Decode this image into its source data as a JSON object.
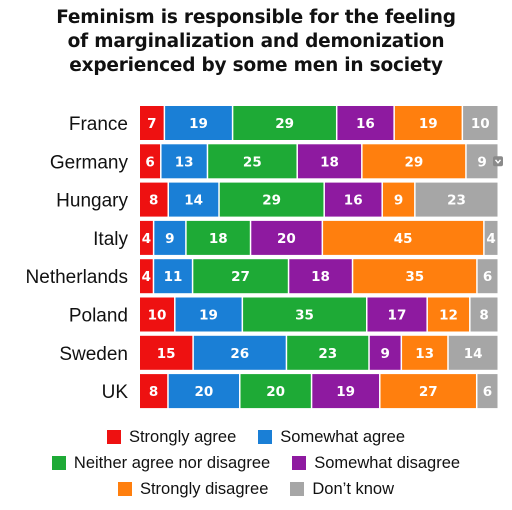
{
  "title_lines": [
    "Feminism is responsible for the feeling",
    "of marginalization and demonization",
    "experienced by some men in society"
  ],
  "chart_data": {
    "type": "bar",
    "orientation": "horizontal",
    "stacked": true,
    "percent_stacked": true,
    "categories": [
      "France",
      "Germany",
      "Hungary",
      "Italy",
      "Netherlands",
      "Poland",
      "Sweden",
      "UK"
    ],
    "series": [
      {
        "name": "Strongly agree",
        "color": "#ee1111",
        "values": [
          7,
          6,
          8,
          4,
          4,
          10,
          15,
          8
        ]
      },
      {
        "name": "Somewhat agree",
        "color": "#1a7fd6",
        "values": [
          19,
          13,
          14,
          9,
          11,
          19,
          26,
          20
        ]
      },
      {
        "name": "Neither agree nor disagree",
        "color": "#1eaa36",
        "values": [
          29,
          25,
          29,
          18,
          27,
          35,
          23,
          20
        ]
      },
      {
        "name": "Somewhat disagree",
        "color": "#8e1aa0",
        "values": [
          16,
          18,
          16,
          20,
          18,
          17,
          9,
          19
        ]
      },
      {
        "name": "Strongly disagree",
        "color": "#ff7f0e",
        "values": [
          19,
          29,
          9,
          45,
          35,
          12,
          13,
          27
        ]
      },
      {
        "name": "Don’t know",
        "color": "#a6a6a6",
        "values": [
          10,
          9,
          23,
          4,
          6,
          8,
          14,
          6
        ]
      }
    ],
    "grid": false,
    "legend_position": "bottom"
  },
  "legend_rows": [
    [
      0,
      1
    ],
    [
      2,
      3
    ],
    [
      4,
      5
    ]
  ],
  "icons": {
    "germany_dont_know_marker": "chevron-down-icon"
  }
}
